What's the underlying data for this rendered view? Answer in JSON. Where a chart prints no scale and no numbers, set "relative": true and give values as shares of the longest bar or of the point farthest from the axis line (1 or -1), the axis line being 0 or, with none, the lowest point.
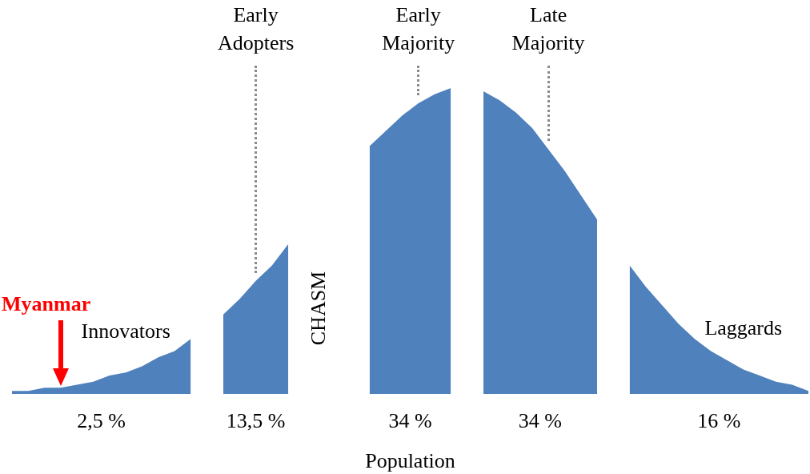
{
  "chart_data": {
    "type": "area",
    "relative": true,
    "xlabel": "Population",
    "categories": [
      null,
      null,
      null,
      null,
      null,
      null,
      null,
      null,
      null,
      null,
      null,
      null,
      null,
      null,
      null,
      null,
      null,
      null,
      null,
      null,
      null,
      null,
      null,
      null,
      null,
      null,
      null,
      null,
      null,
      null,
      null,
      null,
      null,
      null,
      null,
      null,
      null,
      null,
      null,
      null,
      null,
      null,
      null,
      null,
      null,
      null,
      null,
      null,
      null,
      null
    ],
    "series": [
      {
        "name": "Innovators",
        "color": "#4f81bd",
        "values": [
          0.01,
          0.01,
          0.02,
          0.02,
          0.03,
          0.04,
          0.06,
          0.07,
          0.09,
          0.12,
          0.14,
          0.18,
          null,
          null,
          null,
          null,
          null,
          null,
          null,
          null,
          null,
          null,
          null,
          null,
          null,
          null,
          null,
          null,
          null,
          null,
          null,
          null,
          null,
          null,
          null,
          null,
          null,
          null,
          null,
          null,
          null,
          null,
          null,
          null,
          null,
          null,
          null,
          null,
          null,
          null
        ]
      },
      {
        "name": "Early Adopters",
        "color": "#4f81bd",
        "values": [
          null,
          null,
          null,
          null,
          null,
          null,
          null,
          null,
          null,
          null,
          null,
          null,
          null,
          0.26,
          0.31,
          0.37,
          0.42,
          0.49,
          null,
          null,
          null,
          null,
          null,
          null,
          null,
          null,
          null,
          null,
          null,
          null,
          null,
          null,
          null,
          null,
          null,
          null,
          null,
          null,
          null,
          null,
          null,
          null,
          null,
          null,
          null,
          null,
          null,
          null,
          null,
          null
        ]
      },
      {
        "name": "Early Majority",
        "color": "#4f81bd",
        "values": [
          null,
          null,
          null,
          null,
          null,
          null,
          null,
          null,
          null,
          null,
          null,
          null,
          null,
          null,
          null,
          null,
          null,
          null,
          null,
          null,
          null,
          null,
          0.81,
          0.86,
          0.91,
          0.95,
          0.98,
          1,
          null,
          null,
          null,
          null,
          null,
          null,
          null,
          null,
          null,
          null,
          null,
          null,
          null,
          null,
          null,
          null,
          null,
          null,
          null,
          null,
          null,
          null
        ]
      },
      {
        "name": "Late Majority",
        "color": "#4f81bd",
        "values": [
          null,
          null,
          null,
          null,
          null,
          null,
          null,
          null,
          null,
          null,
          null,
          null,
          null,
          null,
          null,
          null,
          null,
          null,
          null,
          null,
          null,
          null,
          null,
          null,
          null,
          null,
          null,
          null,
          null,
          0.99,
          0.96,
          0.92,
          0.87,
          0.8,
          0.73,
          0.65,
          0.57,
          null,
          null,
          null,
          null,
          null,
          null,
          null,
          null,
          null,
          null,
          null,
          null,
          null
        ]
      },
      {
        "name": "Laggards",
        "color": "#4f81bd",
        "values": [
          null,
          null,
          null,
          null,
          null,
          null,
          null,
          null,
          null,
          null,
          null,
          null,
          null,
          null,
          null,
          null,
          null,
          null,
          null,
          null,
          null,
          null,
          null,
          null,
          null,
          null,
          null,
          null,
          null,
          null,
          null,
          null,
          null,
          null,
          null,
          null,
          null,
          null,
          0.42,
          0.35,
          0.29,
          0.23,
          0.18,
          0.14,
          0.11,
          0.08,
          0.06,
          0.04,
          0.03,
          0.01
        ]
      }
    ],
    "annotations": [
      "2,5 %",
      "13,5 %",
      "34 %",
      "34 %",
      "16 %",
      "CHASM",
      "Myanmar"
    ]
  }
}
